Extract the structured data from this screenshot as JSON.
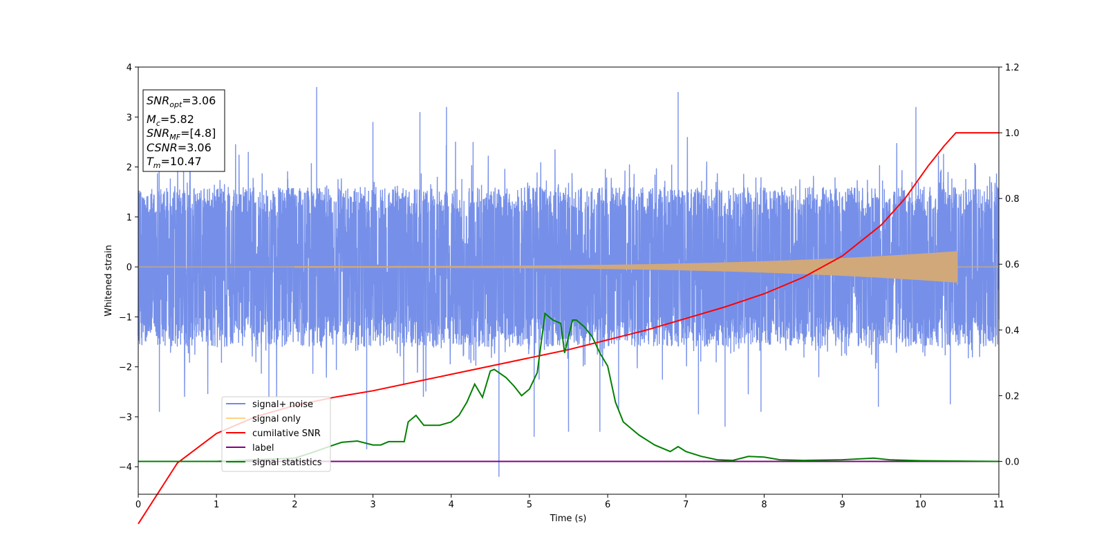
{
  "chart_data": {
    "type": "line",
    "xlabel": "Time (s)",
    "ylabel": "Whitened strain",
    "xlim": [
      0,
      11
    ],
    "ylim": [
      -4.55,
      4
    ],
    "y2lim": [
      -0.1,
      1.2
    ],
    "x_ticks": [
      "0",
      "1",
      "2",
      "3",
      "4",
      "5",
      "6",
      "7",
      "8",
      "9",
      "10",
      "11"
    ],
    "y_ticks": [
      "4",
      "3",
      "2",
      "1",
      "0",
      "−1",
      "−2",
      "−3",
      "−4"
    ],
    "y2_ticks": [
      "1.2",
      "1.0",
      "0.8",
      "0.6",
      "0.4",
      "0.2",
      "0.0"
    ],
    "annotation": {
      "snr_opt": {
        "base": "SNR",
        "sub": "opt",
        "value": "=3.06"
      },
      "mc": {
        "base": "M",
        "sub": "c",
        "value": "=5.82"
      },
      "snr_mf": {
        "base": "SNR",
        "sub": "MF",
        "value": "=[4.8]"
      },
      "csnr": {
        "base": "CSNR",
        "value": "=3.06"
      },
      "tm": {
        "base": "T",
        "sub": "m",
        "value": "=10.47"
      }
    },
    "legend": {
      "placement": "lower-left",
      "items": [
        {
          "label": "signal+ noise",
          "color": "#6f8ae8"
        },
        {
          "label": "signal only",
          "color": "#ffd27f"
        },
        {
          "label": "cumilative SNR",
          "color": "#ff0000"
        },
        {
          "label": "label",
          "color": "#800080"
        },
        {
          "label": "signal statistics",
          "color": "#008000"
        }
      ]
    },
    "series": [
      {
        "name": "signal+ noise",
        "axis": "left",
        "color": "#6f8ae8",
        "envelope_peaks": [
          {
            "x": 0.27,
            "y": -2.9
          },
          {
            "x": 1.67,
            "y": -2.6
          },
          {
            "x": 2.28,
            "y": 3.6
          },
          {
            "x": 2.92,
            "y": -3.65
          },
          {
            "x": 3.0,
            "y": 2.9
          },
          {
            "x": 3.6,
            "y": 3.1
          },
          {
            "x": 3.94,
            "y": 3.2
          },
          {
            "x": 4.28,
            "y": 2.5
          },
          {
            "x": 4.61,
            "y": -4.2
          },
          {
            "x": 5.06,
            "y": -3.4
          },
          {
            "x": 5.5,
            "y": -3.3
          },
          {
            "x": 5.9,
            "y": -3.3
          },
          {
            "x": 6.14,
            "y": -2.85
          },
          {
            "x": 6.9,
            "y": 3.5
          },
          {
            "x": 7.16,
            "y": -2.95
          },
          {
            "x": 7.5,
            "y": -3.2
          },
          {
            "x": 7.96,
            "y": -2.9
          },
          {
            "x": 9.46,
            "y": -2.8
          },
          {
            "x": 9.94,
            "y": 3.2
          },
          {
            "x": 10.38,
            "y": -2.75
          }
        ]
      },
      {
        "name": "signal only",
        "axis": "left",
        "color": "#d1a87a",
        "chirp_end_x": 10.47,
        "max_amplitude": 0.3
      },
      {
        "name": "cumilative SNR",
        "axis": "right",
        "color": "#ff0000",
        "points": [
          [
            0,
            -0.19
          ],
          [
            0.5,
            -0.005
          ],
          [
            1,
            0.085
          ],
          [
            1.5,
            0.136
          ],
          [
            2,
            0.17
          ],
          [
            2.5,
            0.195
          ],
          [
            3,
            0.215
          ],
          [
            3.5,
            0.24
          ],
          [
            4,
            0.265
          ],
          [
            4.5,
            0.29
          ],
          [
            5,
            0.315
          ],
          [
            5.5,
            0.34
          ],
          [
            6,
            0.37
          ],
          [
            6.5,
            0.4
          ],
          [
            7,
            0.435
          ],
          [
            7.5,
            0.47
          ],
          [
            8,
            0.51
          ],
          [
            8.5,
            0.56
          ],
          [
            9,
            0.625
          ],
          [
            9.5,
            0.72
          ],
          [
            9.8,
            0.8
          ],
          [
            10.1,
            0.9
          ],
          [
            10.3,
            0.96
          ],
          [
            10.45,
            1.0
          ],
          [
            11,
            1.0
          ]
        ]
      },
      {
        "name": "label",
        "axis": "right",
        "color": "#800080",
        "points": [
          [
            0,
            0.0
          ],
          [
            11,
            0.0
          ]
        ]
      },
      {
        "name": "signal statistics",
        "axis": "right",
        "color": "#008000",
        "points": [
          [
            0,
            0.0
          ],
          [
            1.0,
            0.0
          ],
          [
            1.5,
            0.005
          ],
          [
            2.0,
            0.01
          ],
          [
            2.2,
            0.025
          ],
          [
            2.5,
            0.05
          ],
          [
            2.6,
            0.058
          ],
          [
            2.8,
            0.062
          ],
          [
            3.0,
            0.05
          ],
          [
            3.1,
            0.05
          ],
          [
            3.2,
            0.06
          ],
          [
            3.4,
            0.06
          ],
          [
            3.45,
            0.12
          ],
          [
            3.55,
            0.14
          ],
          [
            3.65,
            0.11
          ],
          [
            3.85,
            0.11
          ],
          [
            4.0,
            0.12
          ],
          [
            4.1,
            0.14
          ],
          [
            4.2,
            0.18
          ],
          [
            4.3,
            0.235
          ],
          [
            4.4,
            0.195
          ],
          [
            4.5,
            0.275
          ],
          [
            4.55,
            0.28
          ],
          [
            4.7,
            0.255
          ],
          [
            4.8,
            0.23
          ],
          [
            4.9,
            0.2
          ],
          [
            5.0,
            0.22
          ],
          [
            5.1,
            0.27
          ],
          [
            5.2,
            0.45
          ],
          [
            5.3,
            0.43
          ],
          [
            5.4,
            0.42
          ],
          [
            5.45,
            0.33
          ],
          [
            5.55,
            0.43
          ],
          [
            5.6,
            0.43
          ],
          [
            5.7,
            0.41
          ],
          [
            5.8,
            0.38
          ],
          [
            5.9,
            0.33
          ],
          [
            6.0,
            0.29
          ],
          [
            6.1,
            0.18
          ],
          [
            6.2,
            0.12
          ],
          [
            6.3,
            0.1
          ],
          [
            6.4,
            0.08
          ],
          [
            6.6,
            0.05
          ],
          [
            6.8,
            0.03
          ],
          [
            6.9,
            0.045
          ],
          [
            7.0,
            0.03
          ],
          [
            7.2,
            0.015
          ],
          [
            7.4,
            0.005
          ],
          [
            7.6,
            0.003
          ],
          [
            7.8,
            0.015
          ],
          [
            8.0,
            0.013
          ],
          [
            8.2,
            0.005
          ],
          [
            8.5,
            0.003
          ],
          [
            9.0,
            0.005
          ],
          [
            9.4,
            0.01
          ],
          [
            9.6,
            0.005
          ],
          [
            10.0,
            0.002
          ],
          [
            11.0,
            0.0
          ]
        ]
      }
    ]
  }
}
